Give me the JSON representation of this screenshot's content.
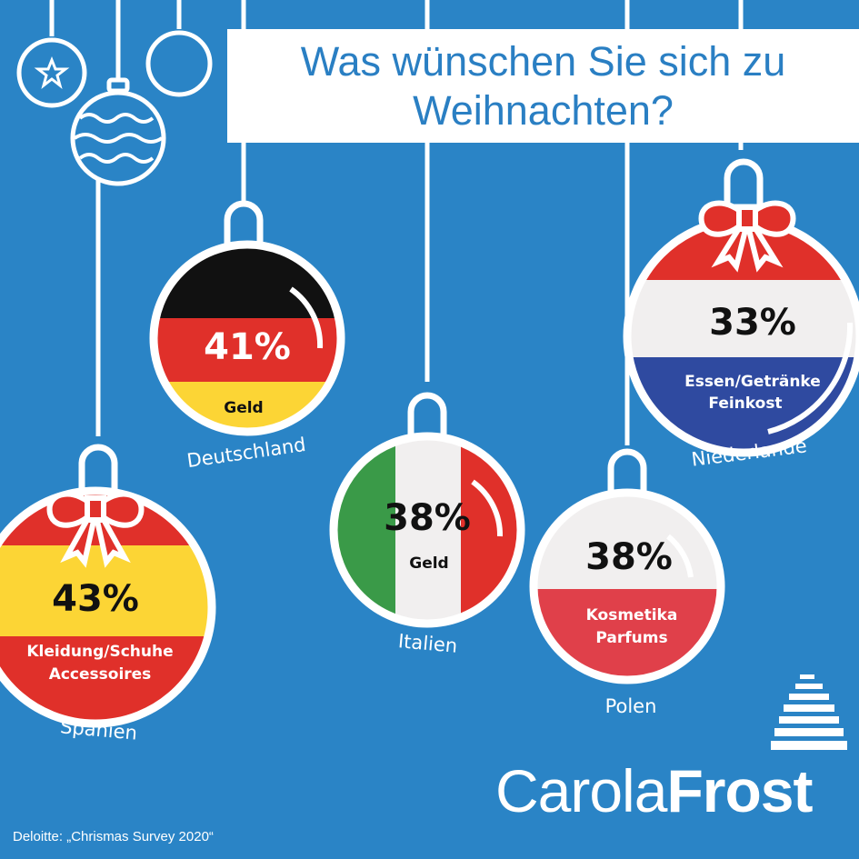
{
  "title": "Was wünschen Sie sich zu Weihnachten?",
  "ornaments": [
    {
      "country": "Deutschland",
      "percent": "41%",
      "category": "Geld",
      "category_line2": ""
    },
    {
      "country": "Spanien",
      "percent": "43%",
      "category": "Kleidung/Schuhe",
      "category_line2": "Accessoires"
    },
    {
      "country": "Italien",
      "percent": "38%",
      "category": "Geld",
      "category_line2": ""
    },
    {
      "country": "Polen",
      "percent": "38%",
      "category": "Kosmetika",
      "category_line2": "Parfums"
    },
    {
      "country": "Niederlande",
      "percent": "33%",
      "category": "Essen/Getränke",
      "category_line2": "Feinkost"
    }
  ],
  "brand": {
    "light": "Carola",
    "bold": "Frost"
  },
  "source": "Deloitte: „Chrismas Survey 2020“",
  "colors": {
    "background": "#2a84c6",
    "red": "#e0302a",
    "yellow": "#fcd535",
    "green": "#3a9a48",
    "blue": "#2f4aa0",
    "white": "#f1efef"
  }
}
